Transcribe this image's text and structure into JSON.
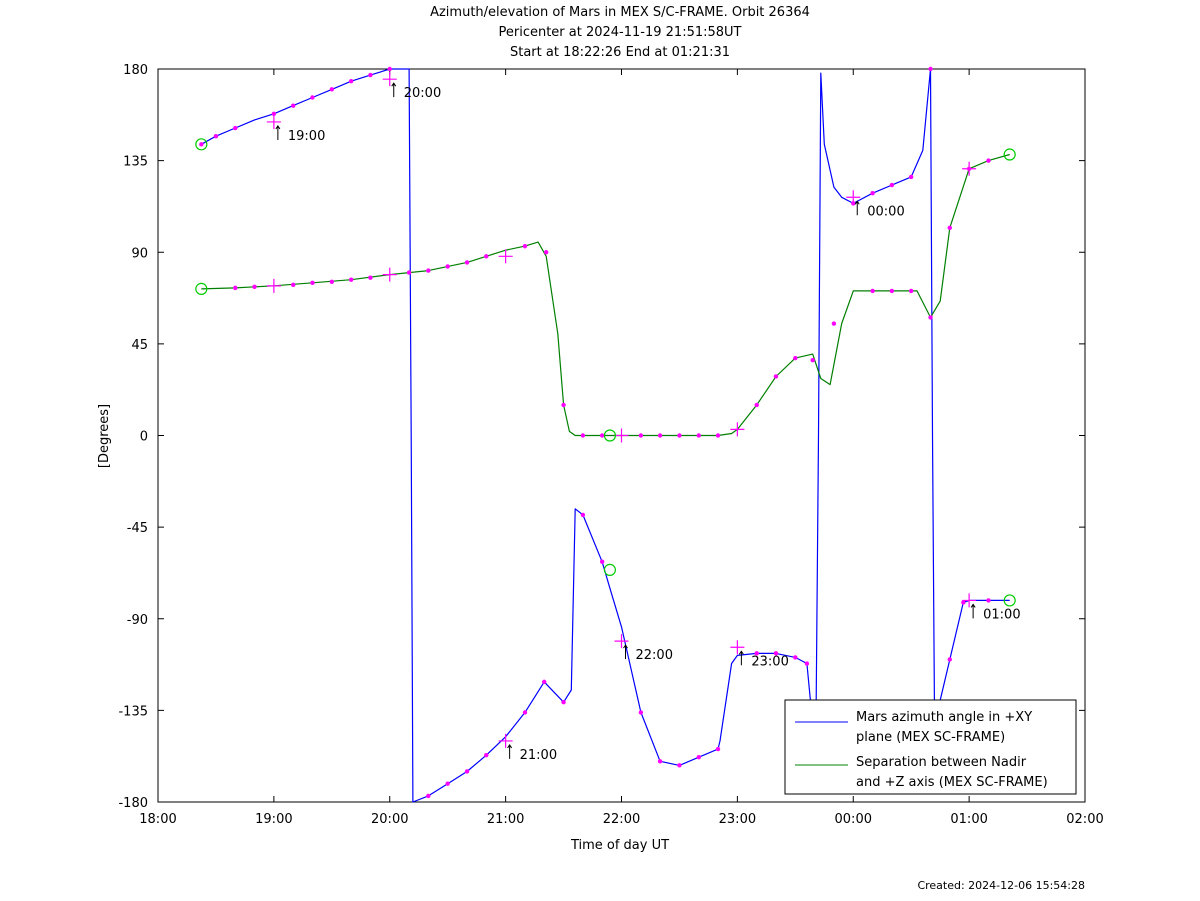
{
  "chart_data": {
    "type": "line",
    "title_lines": [
      "Azimuth/elevation of Mars in MEX S/C-FRAME.  Orbit 26364",
      "Pericenter at 2024-11-19 21:51:58UT",
      "Start at 18:22:26 End at 01:21:31"
    ],
    "xlabel": "Time of day UT",
    "ylabel": "[Degrees]",
    "xlim": [
      18,
      26
    ],
    "ylim": [
      -180,
      180
    ],
    "x_ticks": [
      18,
      19,
      20,
      21,
      22,
      23,
      24,
      25,
      26
    ],
    "x_tick_labels": [
      "18:00",
      "19:00",
      "20:00",
      "21:00",
      "22:00",
      "23:00",
      "00:00",
      "01:00",
      "02:00"
    ],
    "y_ticks": [
      180,
      135,
      90,
      45,
      0,
      -45,
      -90,
      -135,
      -180
    ],
    "y_tick_labels": [
      "180",
      "135",
      "90",
      "45",
      "0",
      "-45",
      "-90",
      "-135",
      "-180"
    ],
    "grid": false,
    "legend_position": "bottom-right",
    "series": [
      {
        "name": "Mars azimuth angle in +XY plane (MEX SC-FRAME)",
        "legend_lines": [
          "Mars azimuth angle in +XY",
          "plane (MEX SC-FRAME)"
        ],
        "color": "#0000ff",
        "x": [
          18.374,
          18.5,
          18.667,
          18.833,
          19.0,
          19.167,
          19.333,
          19.5,
          19.667,
          19.833,
          20.0,
          20.167,
          20.185,
          20.2,
          20.333,
          20.5,
          20.667,
          20.833,
          21.0,
          21.167,
          21.333,
          21.5,
          21.567,
          21.6,
          21.667,
          21.833,
          21.9,
          22.0,
          22.167,
          22.333,
          22.5,
          22.667,
          22.833,
          22.85,
          22.95,
          23.0,
          23.167,
          23.333,
          23.5,
          23.6,
          23.63,
          23.68,
          23.7,
          23.72,
          23.75,
          23.833,
          23.9,
          24.0,
          24.167,
          24.333,
          24.5,
          24.6,
          24.667,
          24.684,
          24.7,
          24.75,
          24.833,
          24.95,
          25.0,
          25.167,
          25.35
        ],
        "y": [
          143,
          147,
          151,
          155,
          158,
          162,
          166,
          170,
          174,
          177,
          180,
          180,
          0,
          -180,
          -177,
          -171,
          -165,
          -157,
          -148,
          -136,
          -121,
          -131,
          -125,
          -36,
          -39,
          -62,
          -75,
          -94,
          -136,
          -160,
          -162,
          -158,
          -154,
          -150,
          -112,
          -108,
          -107,
          -107,
          -109,
          -112,
          -130,
          -130,
          0,
          178,
          143,
          122,
          117,
          114,
          119,
          123,
          127,
          140,
          180,
          0,
          -130,
          -130,
          -110,
          -82,
          -81,
          -81,
          -81
        ]
      },
      {
        "name": "Separation between Nadir and +Z axis (MEX SC-FRAME)",
        "legend_lines": [
          "Separation between Nadir",
          "and +Z axis (MEX SC-FRAME)"
        ],
        "color": "#008000",
        "x": [
          18.374,
          18.667,
          19.0,
          19.333,
          19.667,
          20.0,
          20.333,
          20.667,
          20.833,
          21.0,
          21.167,
          21.28,
          21.35,
          21.45,
          21.5,
          21.55,
          21.6,
          21.8,
          22.0,
          22.333,
          22.667,
          22.833,
          22.95,
          23.0,
          23.167,
          23.333,
          23.5,
          23.65,
          23.72,
          23.8,
          23.9,
          24.0,
          24.333,
          24.55,
          24.667,
          24.75,
          24.833,
          25.0,
          25.167,
          25.35
        ],
        "y": [
          72,
          72.5,
          73.5,
          75,
          76.5,
          79,
          81,
          85,
          88,
          91,
          93,
          95,
          88,
          50,
          15,
          2,
          0,
          0,
          0,
          0,
          0,
          0,
          1,
          3,
          15,
          29,
          38,
          40,
          28,
          25,
          55,
          71,
          71,
          71,
          58,
          66,
          102,
          131,
          135,
          138
        ]
      }
    ],
    "markers": {
      "dots": [
        [
          18.374,
          143
        ],
        [
          18.5,
          147
        ],
        [
          18.667,
          151
        ],
        [
          19.0,
          158
        ],
        [
          19.167,
          162
        ],
        [
          19.333,
          166
        ],
        [
          19.5,
          170
        ],
        [
          19.667,
          174
        ],
        [
          19.833,
          177
        ],
        [
          20.0,
          180
        ],
        [
          20.333,
          -177
        ],
        [
          20.5,
          -171
        ],
        [
          20.667,
          -165
        ],
        [
          20.833,
          -157
        ],
        [
          21.167,
          -136
        ],
        [
          21.333,
          -121
        ],
        [
          21.5,
          -131
        ],
        [
          21.667,
          -39
        ],
        [
          21.833,
          -62
        ],
        [
          22.167,
          -136
        ],
        [
          22.333,
          -160
        ],
        [
          22.5,
          -162
        ],
        [
          22.667,
          -158
        ],
        [
          22.833,
          -154
        ],
        [
          23.167,
          -107
        ],
        [
          23.333,
          -107
        ],
        [
          23.5,
          -109
        ],
        [
          23.6,
          -112
        ],
        [
          24.0,
          114
        ],
        [
          24.167,
          119
        ],
        [
          24.333,
          123
        ],
        [
          24.5,
          127
        ],
        [
          24.667,
          180
        ],
        [
          24.833,
          -110
        ],
        [
          24.95,
          -82
        ],
        [
          25.167,
          -81
        ],
        [
          18.667,
          72.5
        ],
        [
          18.833,
          73
        ],
        [
          19.167,
          74
        ],
        [
          19.333,
          75
        ],
        [
          19.5,
          75.5
        ],
        [
          19.667,
          76.5
        ],
        [
          19.833,
          77.5
        ],
        [
          20.167,
          80
        ],
        [
          20.333,
          81
        ],
        [
          20.5,
          83
        ],
        [
          20.667,
          85
        ],
        [
          20.833,
          88
        ],
        [
          21.167,
          93
        ],
        [
          21.35,
          90
        ],
        [
          21.5,
          15
        ],
        [
          21.667,
          0
        ],
        [
          21.833,
          0
        ],
        [
          22.167,
          0
        ],
        [
          22.333,
          0
        ],
        [
          22.5,
          0
        ],
        [
          22.667,
          0
        ],
        [
          22.833,
          0
        ],
        [
          23.167,
          15
        ],
        [
          23.333,
          29
        ],
        [
          23.5,
          38
        ],
        [
          23.65,
          37
        ],
        [
          23.833,
          55
        ],
        [
          24.167,
          71
        ],
        [
          24.333,
          71
        ],
        [
          24.5,
          71
        ],
        [
          24.667,
          58
        ],
        [
          24.833,
          102
        ],
        [
          25.0,
          131
        ],
        [
          25.167,
          135
        ]
      ],
      "crosses": [
        [
          19.0,
          154
        ],
        [
          20.0,
          175
        ],
        [
          21.0,
          -150
        ],
        [
          22.0,
          -101
        ],
        [
          23.0,
          -104
        ],
        [
          24.0,
          117
        ],
        [
          25.0,
          -81
        ],
        [
          19.0,
          73.5
        ],
        [
          20.0,
          79
        ],
        [
          21.0,
          88
        ],
        [
          22.0,
          0
        ],
        [
          23.0,
          3
        ],
        [
          25.0,
          131
        ]
      ],
      "circles": [
        [
          18.374,
          143
        ],
        [
          18.374,
          72
        ],
        [
          21.9,
          -66
        ],
        [
          21.9,
          0
        ],
        [
          25.35,
          -81
        ],
        [
          25.35,
          138
        ]
      ]
    },
    "time_annotations": [
      {
        "label": "19:00",
        "x": 19.0,
        "y": 154
      },
      {
        "label": "20:00",
        "x": 20.0,
        "y": 175
      },
      {
        "label": "21:00",
        "x": 21.0,
        "y": -150
      },
      {
        "label": "22:00",
        "x": 22.0,
        "y": -101
      },
      {
        "label": "23:00",
        "x": 23.0,
        "y": -104
      },
      {
        "label": "00:00",
        "x": 24.0,
        "y": 117
      },
      {
        "label": "01:00",
        "x": 25.0,
        "y": -81
      }
    ],
    "footer": "Created: 2024-12-06 15:54:28"
  }
}
